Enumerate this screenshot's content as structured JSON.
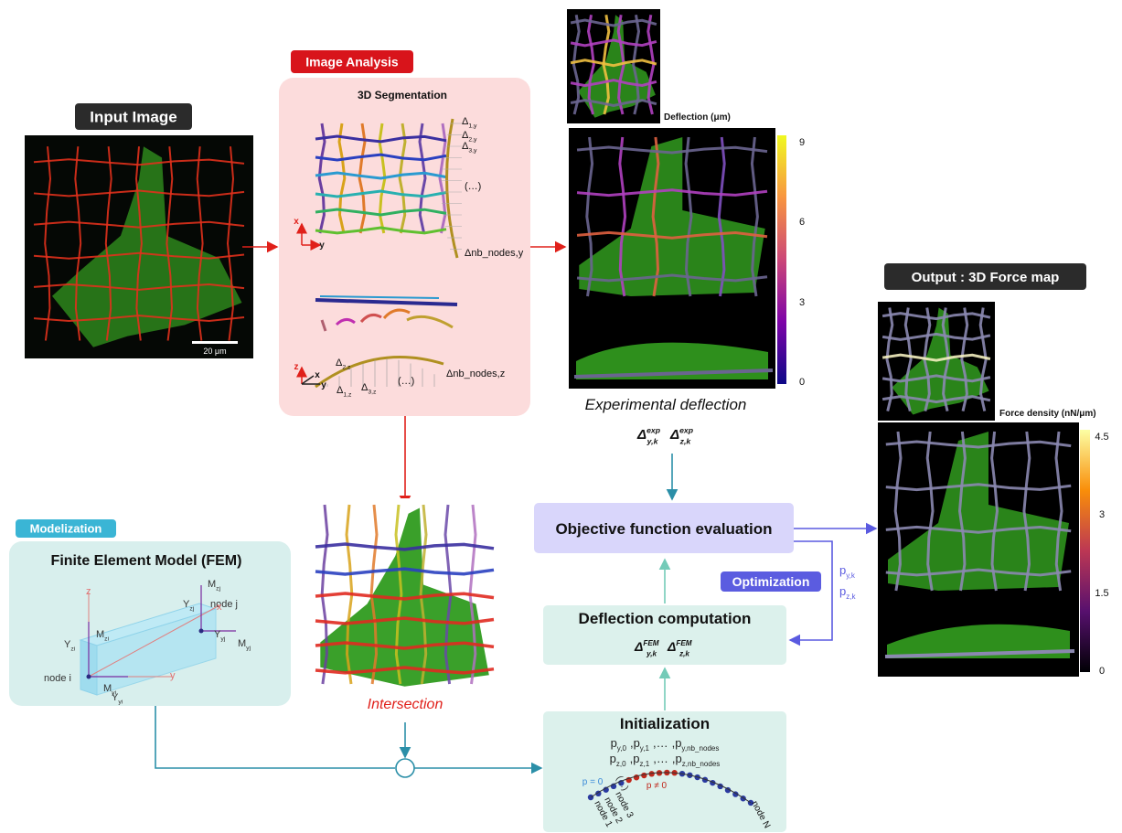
{
  "input": {
    "label": "Input Image",
    "scale_bar": "20 μm"
  },
  "image_analysis": {
    "label": "Image Analysis",
    "title": "3D Segmentation",
    "y_deltas": [
      {
        "main": "Δ",
        "sub": "1,y"
      },
      {
        "main": "Δ",
        "sub": "2,y"
      },
      {
        "main": "Δ",
        "sub": "3,y"
      },
      {
        "main": "(…)"
      },
      {
        "main": "Δnb_nodes,y"
      }
    ],
    "xy_axes": [
      "x",
      "y"
    ],
    "z_deltas": [
      {
        "main": "Δ",
        "sub": "2,z"
      },
      {
        "main": "Δ",
        "sub": "1,z"
      },
      {
        "main": "Δ",
        "sub": "3,z"
      },
      {
        "main": "(…)"
      },
      {
        "main": "Δnb_nodes,z"
      }
    ],
    "xyz_axes": [
      "z",
      "x",
      "y"
    ]
  },
  "deflection": {
    "colorbar_title": "Deflection (μm)",
    "colorbar_ticks": [
      9,
      6,
      3,
      0
    ],
    "caption": "Experimental deflection",
    "symbols": [
      {
        "main": "Δ",
        "sup": "exp",
        "sub": "y,k"
      },
      {
        "main": "Δ",
        "sup": "exp",
        "sub": "z,k"
      }
    ]
  },
  "output": {
    "label": "Output : 3D Force map",
    "colorbar_title": "Force density (nN/μm)",
    "colorbar_ticks": [
      4.5,
      3,
      1.5,
      0
    ]
  },
  "modelization": {
    "label": "Modelization",
    "title": "Finite Element Model (FEM)",
    "labels": [
      {
        "main": "z"
      },
      {
        "main": "M",
        "sub": "zj"
      },
      {
        "main": "Y",
        "sub": "zj"
      },
      {
        "main": "node j"
      },
      {
        "main": "x"
      },
      {
        "main": "Y",
        "sub": "zi"
      },
      {
        "main": "M",
        "sub": "zi"
      },
      {
        "main": "Y",
        "sub": "yj"
      },
      {
        "main": "M",
        "sub": "yj"
      },
      {
        "main": "node i"
      },
      {
        "main": "y"
      },
      {
        "main": "M",
        "sub": "yi"
      },
      {
        "main": "Y",
        "sub": "yi"
      }
    ]
  },
  "intersection": {
    "caption": "Intersection"
  },
  "objective": {
    "label": "Objective function evaluation"
  },
  "optimization": {
    "label": "Optimization",
    "params": [
      {
        "main": "p",
        "sub": "y,k"
      },
      {
        "main": "p",
        "sub": "z,k"
      }
    ]
  },
  "deflection_computation": {
    "title": "Deflection computation",
    "symbols": [
      {
        "main": "Δ",
        "sup": "FEM",
        "sub": "y,k"
      },
      {
        "main": "Δ",
        "sup": "FEM",
        "sub": "z,k"
      }
    ]
  },
  "initialization": {
    "title": "Initialization",
    "separator": ",",
    "row_y": [
      {
        "main": "p",
        "sub": "y,0"
      },
      {
        "main": "p",
        "sub": "y,1"
      },
      {
        "main": "…"
      },
      {
        "main": "p",
        "sub": "y,nb_nodes"
      }
    ],
    "row_z": [
      {
        "main": "p",
        "sub": "z,0"
      },
      {
        "main": "p",
        "sub": "z,1"
      },
      {
        "main": "…"
      },
      {
        "main": "p",
        "sub": "z,nb_nodes"
      }
    ],
    "node_labels": [
      "p = 0",
      "(…)",
      "p ≠ 0",
      "node 1",
      "node 2",
      "node 3",
      "node N"
    ]
  }
}
